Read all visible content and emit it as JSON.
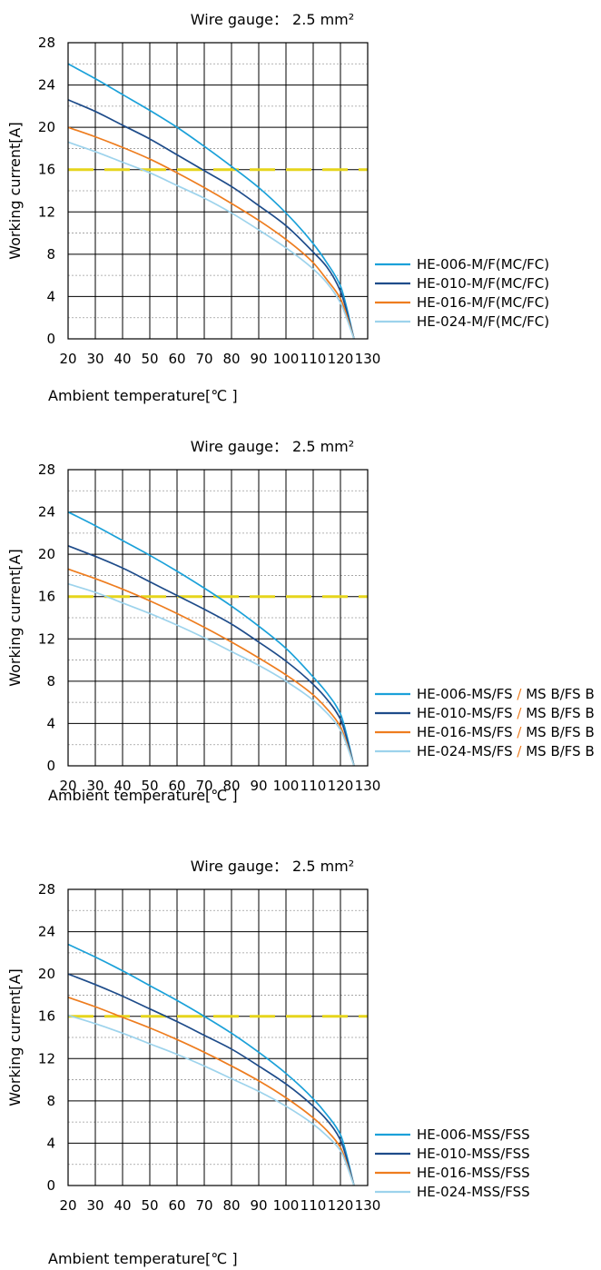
{
  "chart_data": [
    {
      "type": "line",
      "title": "Wire gauge： 2.5 mm²",
      "xlabel": "Ambient temperature[℃ ]",
      "ylabel": "Working current[A]",
      "xlim": [
        20,
        130
      ],
      "ylim": [
        0,
        28
      ],
      "x_ticks": [
        20,
        30,
        40,
        50,
        60,
        70,
        80,
        90,
        100,
        110,
        120,
        130
      ],
      "y_ticks": [
        0,
        4,
        8,
        12,
        16,
        20,
        24,
        28
      ],
      "grid": true,
      "legend_position": "right",
      "reference_line": {
        "y": 16,
        "style": "dashed",
        "color": "#e6d51c"
      },
      "series": [
        {
          "name": "HE-006-M/F(MC/FC)",
          "color": "#1ba1d9",
          "x": [
            20,
            30,
            40,
            50,
            60,
            70,
            80,
            90,
            100,
            110,
            115,
            120,
            125
          ],
          "y": [
            26,
            24.6,
            23.1,
            21.6,
            20,
            18.2,
            16.3,
            14.3,
            11.9,
            9,
            7.2,
            5,
            0
          ]
        },
        {
          "name": "HE-010-M/F(MC/FC)",
          "color": "#1e4c8a",
          "x": [
            20,
            30,
            40,
            50,
            60,
            70,
            80,
            90,
            100,
            110,
            115,
            120,
            125
          ],
          "y": [
            22.6,
            21.5,
            20.2,
            18.9,
            17.4,
            15.9,
            14.4,
            12.6,
            10.7,
            8.2,
            6.8,
            4.5,
            0
          ]
        },
        {
          "name": "HE-016-M/F(MC/FC)",
          "color": "#ee7d1f",
          "x": [
            20,
            30,
            40,
            50,
            60,
            70,
            80,
            90,
            100,
            110,
            115,
            120,
            125
          ],
          "y": [
            20,
            19.1,
            18.1,
            17,
            15.7,
            14.3,
            12.8,
            11.2,
            9.4,
            7.2,
            5.6,
            3.8,
            0
          ]
        },
        {
          "name": "HE-024-M/F(MC/FC)",
          "color": "#9dd3ec",
          "x": [
            20,
            30,
            40,
            50,
            60,
            70,
            80,
            90,
            100,
            110,
            115,
            120,
            125
          ],
          "y": [
            18.6,
            17.7,
            16.7,
            15.7,
            14.5,
            13.3,
            11.9,
            10.3,
            8.6,
            6.6,
            5.3,
            3.4,
            0
          ]
        }
      ]
    },
    {
      "type": "line",
      "title": "Wire gauge： 2.5 mm²",
      "xlabel": "Ambient temperature[℃ ]",
      "ylabel": "Working current[A]",
      "xlim": [
        20,
        130
      ],
      "ylim": [
        0,
        28
      ],
      "x_ticks": [
        20,
        30,
        40,
        50,
        60,
        70,
        80,
        90,
        100,
        110,
        120,
        130
      ],
      "y_ticks": [
        0,
        4,
        8,
        12,
        16,
        20,
        24,
        28
      ],
      "grid": true,
      "legend_position": "right",
      "reference_line": {
        "y": 16,
        "style": "dashed",
        "color": "#e6d51c"
      },
      "series": [
        {
          "name": "HE-006-MS/FS / MS B/FS B",
          "name_parts": [
            "HE-006-MS/FS",
            " / ",
            "MS B/FS B"
          ],
          "color": "#1ba1d9",
          "x": [
            20,
            30,
            40,
            50,
            60,
            70,
            80,
            90,
            100,
            110,
            115,
            120,
            125
          ],
          "y": [
            24,
            22.7,
            21.3,
            19.9,
            18.4,
            16.8,
            15.1,
            13.2,
            11.1,
            8.4,
            6.9,
            4.9,
            0
          ]
        },
        {
          "name": "HE-010-MS/FS / MS B/FS B",
          "name_parts": [
            "HE-010-MS/FS",
            " / ",
            "MS B/FS B"
          ],
          "color": "#1e4c8a",
          "x": [
            20,
            30,
            40,
            50,
            60,
            70,
            80,
            90,
            100,
            110,
            115,
            120,
            125
          ],
          "y": [
            20.8,
            19.8,
            18.7,
            17.4,
            16.1,
            14.8,
            13.4,
            11.7,
            9.9,
            7.7,
            6.3,
            4.4,
            0
          ]
        },
        {
          "name": "HE-016-MS/FS / MS B/FS B",
          "name_parts": [
            "HE-016-MS/FS",
            " / ",
            "MS B/FS B"
          ],
          "color": "#ee7d1f",
          "x": [
            20,
            30,
            40,
            50,
            60,
            70,
            80,
            90,
            100,
            110,
            115,
            120,
            125
          ],
          "y": [
            18.6,
            17.7,
            16.7,
            15.6,
            14.4,
            13.1,
            11.7,
            10.2,
            8.6,
            6.7,
            5.4,
            3.7,
            0
          ]
        },
        {
          "name": "HE-024-MS/FS / MS B/FS B",
          "name_parts": [
            "HE-024-MS/FS",
            " / ",
            "MS B/FS B"
          ],
          "color": "#9dd3ec",
          "x": [
            20,
            30,
            40,
            50,
            60,
            70,
            80,
            90,
            100,
            110,
            115,
            120,
            125
          ],
          "y": [
            17.2,
            16.4,
            15.4,
            14.4,
            13.3,
            12.1,
            10.8,
            9.5,
            8,
            6.2,
            5,
            3.4,
            0
          ]
        }
      ]
    },
    {
      "type": "line",
      "title": "Wire gauge： 2.5 mm²",
      "xlabel": "Ambient temperature[℃ ]",
      "ylabel": "Working current[A]",
      "xlim": [
        20,
        130
      ],
      "ylim": [
        0,
        28
      ],
      "x_ticks": [
        20,
        30,
        40,
        50,
        60,
        70,
        80,
        90,
        100,
        110,
        120,
        130
      ],
      "y_ticks": [
        0,
        4,
        8,
        12,
        16,
        20,
        24,
        28
      ],
      "grid": true,
      "legend_position": "right",
      "reference_line": {
        "y": 16,
        "style": "dashed",
        "color": "#e6d51c"
      },
      "series": [
        {
          "name": "HE-006-MSS/FSS",
          "color": "#1ba1d9",
          "x": [
            20,
            30,
            40,
            50,
            60,
            70,
            80,
            90,
            100,
            110,
            115,
            120,
            125
          ],
          "y": [
            22.8,
            21.6,
            20.3,
            18.9,
            17.5,
            16,
            14.4,
            12.6,
            10.6,
            8.2,
            6.7,
            4.8,
            0
          ]
        },
        {
          "name": "HE-010-MSS/FSS",
          "color": "#1e4c8a",
          "x": [
            20,
            30,
            40,
            50,
            60,
            70,
            80,
            90,
            100,
            110,
            115,
            120,
            125
          ],
          "y": [
            20,
            19,
            17.9,
            16.7,
            15.5,
            14.2,
            12.9,
            11.3,
            9.6,
            7.5,
            6.2,
            4.3,
            0
          ]
        },
        {
          "name": "HE-016-MSS/FSS",
          "color": "#ee7d1f",
          "x": [
            20,
            30,
            40,
            50,
            60,
            70,
            80,
            90,
            100,
            110,
            115,
            120,
            125
          ],
          "y": [
            17.8,
            16.9,
            15.9,
            14.9,
            13.8,
            12.6,
            11.3,
            9.9,
            8.3,
            6.4,
            5.2,
            3.6,
            0
          ]
        },
        {
          "name": "HE-024-MSS/FSS",
          "color": "#9dd3ec",
          "x": [
            20,
            30,
            40,
            50,
            60,
            70,
            80,
            90,
            100,
            110,
            115,
            120,
            125
          ],
          "y": [
            16.1,
            15.3,
            14.4,
            13.4,
            12.4,
            11.3,
            10.1,
            8.9,
            7.5,
            5.8,
            4.7,
            3.3,
            0
          ]
        }
      ]
    }
  ]
}
